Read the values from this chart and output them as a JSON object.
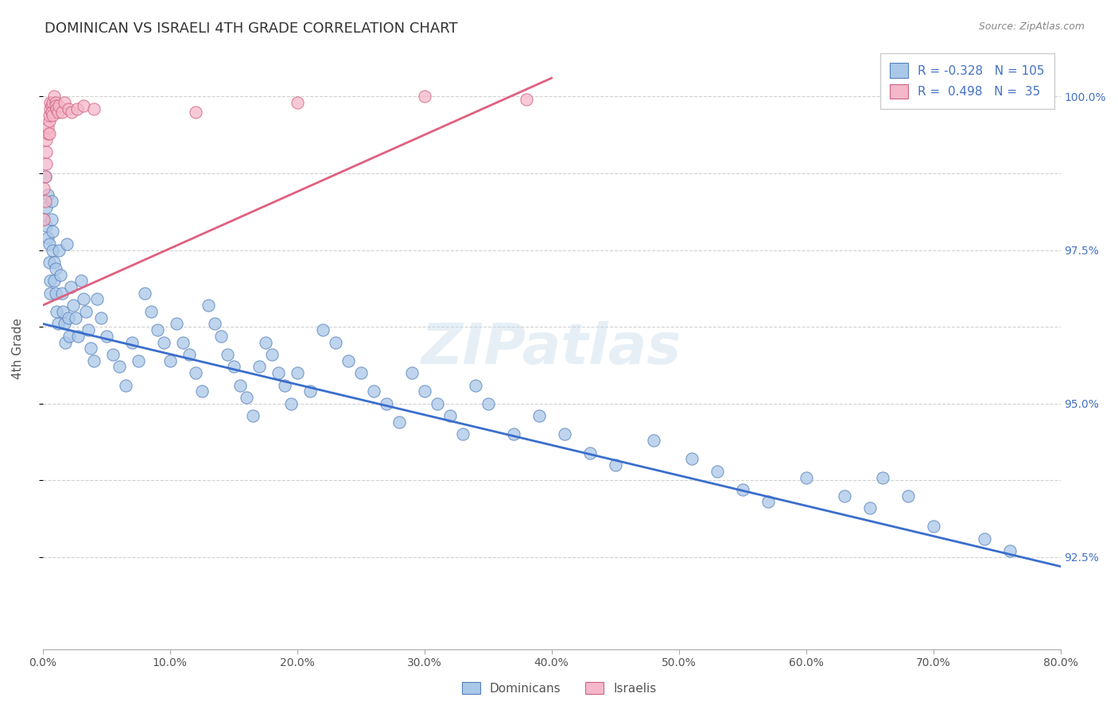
{
  "title": "DOMINICAN VS ISRAELI 4TH GRADE CORRELATION CHART",
  "source": "Source: ZipAtlas.com",
  "ylabel": "4th Grade",
  "xlim": [
    0.0,
    0.8
  ],
  "ylim": [
    0.91,
    1.008
  ],
  "watermark": "ZIPatlas",
  "blue_color": "#aac8e8",
  "blue_edge_color": "#5580bb",
  "blue_line_color": "#3a6ecc",
  "pink_color": "#f5b8ca",
  "pink_edge_color": "#d06080",
  "pink_line_color": "#e06080",
  "blue_r": "-0.328",
  "blue_n": "105",
  "pink_r": "0.498",
  "pink_n": "35",
  "blue_trendline_x": [
    0.0,
    0.8
  ],
  "blue_trendline_y": [
    0.963,
    0.9235
  ],
  "pink_trendline_x": [
    0.0,
    0.4
  ],
  "pink_trendline_y": [
    0.966,
    1.003
  ],
  "y_grid_positions": [
    0.925,
    0.9375,
    0.95,
    0.9625,
    0.975,
    0.9875,
    1.0
  ],
  "y_right_labels": [
    "92.5%",
    "",
    "95.0%",
    "",
    "97.5%",
    "",
    "100.0%"
  ],
  "x_tick_positions": [
    0.0,
    0.1,
    0.2,
    0.3,
    0.4,
    0.5,
    0.6,
    0.7,
    0.8
  ],
  "x_tick_labels": [
    "0.0%",
    "10.0%",
    "20.0%",
    "30.0%",
    "40.0%",
    "50.0%",
    "60.0%",
    "70.0%",
    "80.0%"
  ],
  "right_label_color": "#4472c4",
  "title_color": "#333333",
  "source_color": "#888888",
  "axis_label_color": "#555555",
  "dominicans_x": [
    0.001,
    0.002,
    0.003,
    0.003,
    0.004,
    0.004,
    0.005,
    0.005,
    0.006,
    0.006,
    0.007,
    0.007,
    0.008,
    0.008,
    0.009,
    0.009,
    0.01,
    0.01,
    0.011,
    0.012,
    0.013,
    0.014,
    0.015,
    0.016,
    0.017,
    0.018,
    0.019,
    0.02,
    0.021,
    0.022,
    0.024,
    0.026,
    0.028,
    0.03,
    0.032,
    0.034,
    0.036,
    0.038,
    0.04,
    0.043,
    0.046,
    0.05,
    0.055,
    0.06,
    0.065,
    0.07,
    0.075,
    0.08,
    0.085,
    0.09,
    0.095,
    0.1,
    0.105,
    0.11,
    0.115,
    0.12,
    0.125,
    0.13,
    0.135,
    0.14,
    0.145,
    0.15,
    0.155,
    0.16,
    0.165,
    0.17,
    0.175,
    0.18,
    0.185,
    0.19,
    0.195,
    0.2,
    0.21,
    0.22,
    0.23,
    0.24,
    0.25,
    0.26,
    0.27,
    0.28,
    0.29,
    0.3,
    0.31,
    0.32,
    0.33,
    0.34,
    0.35,
    0.37,
    0.39,
    0.41,
    0.43,
    0.45,
    0.48,
    0.51,
    0.53,
    0.55,
    0.57,
    0.6,
    0.63,
    0.65,
    0.66,
    0.68,
    0.7,
    0.74,
    0.76
  ],
  "dominicans_y": [
    0.98,
    0.987,
    0.982,
    0.979,
    0.984,
    0.977,
    0.976,
    0.973,
    0.97,
    0.968,
    0.983,
    0.98,
    0.978,
    0.975,
    0.973,
    0.97,
    0.972,
    0.968,
    0.965,
    0.963,
    0.975,
    0.971,
    0.968,
    0.965,
    0.963,
    0.96,
    0.976,
    0.964,
    0.961,
    0.969,
    0.966,
    0.964,
    0.961,
    0.97,
    0.967,
    0.965,
    0.962,
    0.959,
    0.957,
    0.967,
    0.964,
    0.961,
    0.958,
    0.956,
    0.953,
    0.96,
    0.957,
    0.968,
    0.965,
    0.962,
    0.96,
    0.957,
    0.963,
    0.96,
    0.958,
    0.955,
    0.952,
    0.966,
    0.963,
    0.961,
    0.958,
    0.956,
    0.953,
    0.951,
    0.948,
    0.956,
    0.96,
    0.958,
    0.955,
    0.953,
    0.95,
    0.955,
    0.952,
    0.962,
    0.96,
    0.957,
    0.955,
    0.952,
    0.95,
    0.947,
    0.955,
    0.952,
    0.95,
    0.948,
    0.945,
    0.953,
    0.95,
    0.945,
    0.948,
    0.945,
    0.942,
    0.94,
    0.944,
    0.941,
    0.939,
    0.936,
    0.934,
    0.938,
    0.935,
    0.933,
    0.938,
    0.935,
    0.93,
    0.928,
    0.926
  ],
  "israelis_x": [
    0.001,
    0.001,
    0.002,
    0.002,
    0.003,
    0.003,
    0.003,
    0.004,
    0.004,
    0.005,
    0.005,
    0.005,
    0.006,
    0.006,
    0.007,
    0.007,
    0.008,
    0.008,
    0.009,
    0.01,
    0.01,
    0.011,
    0.012,
    0.013,
    0.015,
    0.017,
    0.02,
    0.023,
    0.027,
    0.032,
    0.04,
    0.12,
    0.2,
    0.3,
    0.38
  ],
  "israelis_y": [
    0.98,
    0.985,
    0.983,
    0.987,
    0.989,
    0.991,
    0.993,
    0.994,
    0.995,
    0.994,
    0.996,
    0.997,
    0.998,
    0.999,
    0.9985,
    0.9975,
    0.997,
    0.999,
    1.0,
    0.999,
    0.9985,
    0.998,
    0.9975,
    0.9985,
    0.9975,
    0.999,
    0.998,
    0.9975,
    0.998,
    0.9985,
    0.998,
    0.9975,
    0.999,
    1.0,
    0.9995
  ]
}
